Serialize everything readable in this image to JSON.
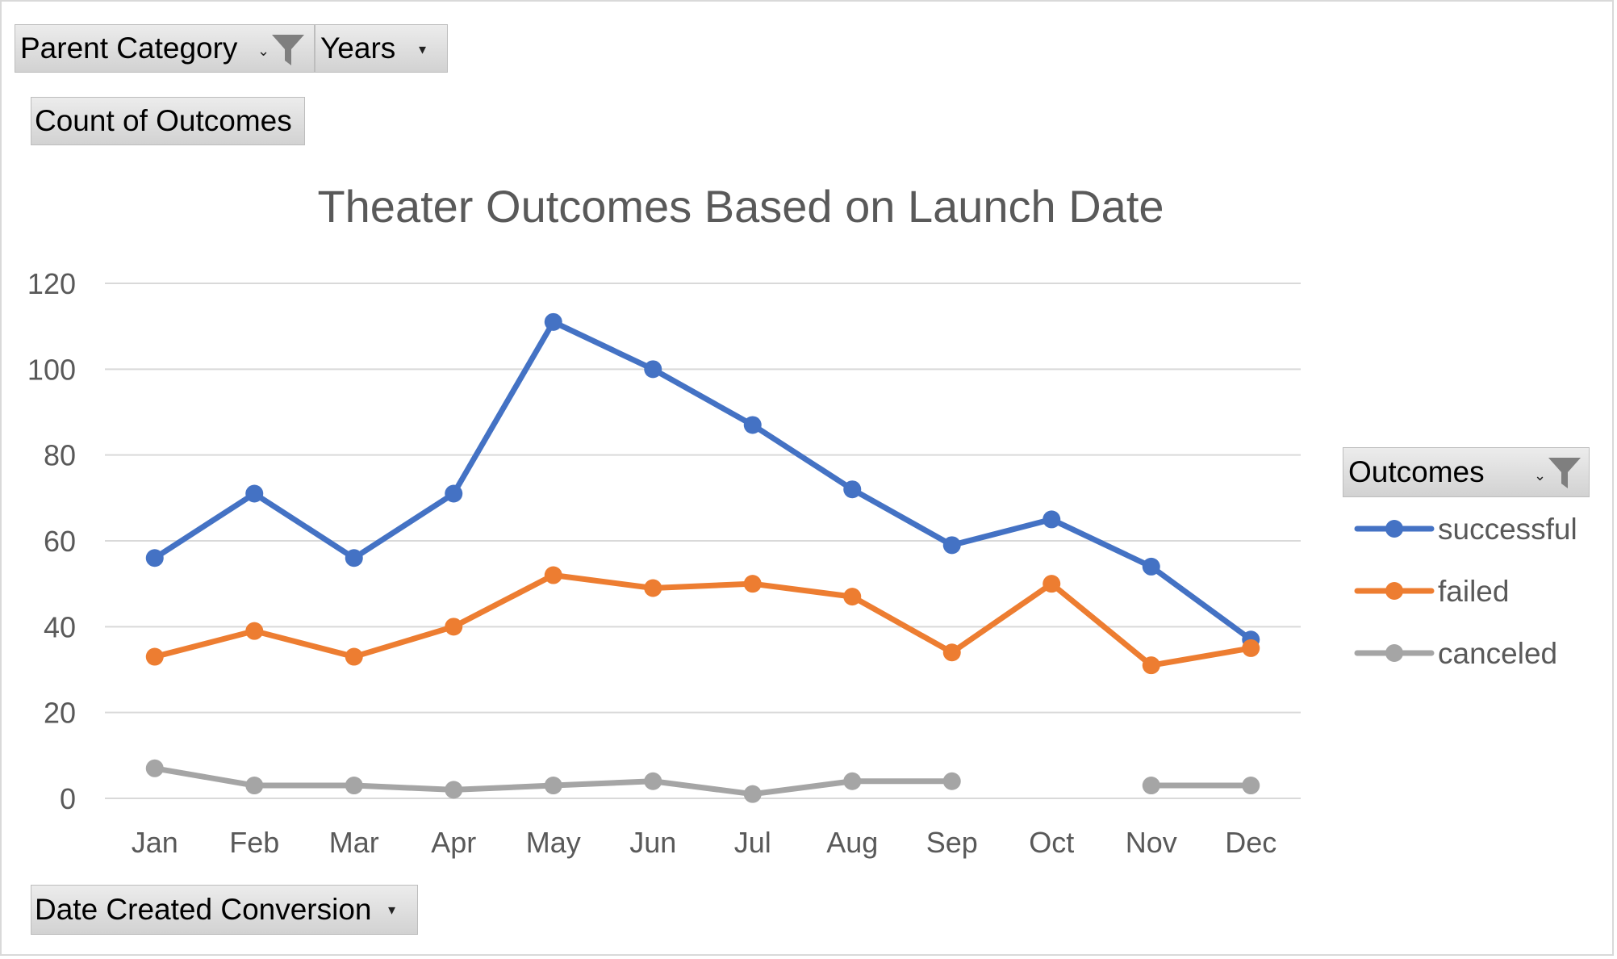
{
  "filters": {
    "parent_category": {
      "label": "Parent Category",
      "icon": "funnel-icon"
    },
    "years": {
      "label": "Years",
      "icon": "dropdown-arrow-icon"
    },
    "values_field": {
      "label": "Count of Outcomes"
    },
    "axis_field": {
      "label": "Date Created Conversion",
      "icon": "dropdown-arrow-icon"
    },
    "legend_field": {
      "label": "Outcomes",
      "icon": "funnel-icon"
    }
  },
  "colors": {
    "successful": "#4472c4",
    "failed": "#ed7d31",
    "canceled": "#a5a5a5",
    "grid": "#d9d9d9",
    "text": "#595959"
  },
  "chart_data": {
    "type": "line",
    "title": "Theater Outcomes Based on Launch Date",
    "categories": [
      "Jan",
      "Feb",
      "Mar",
      "Apr",
      "May",
      "Jun",
      "Jul",
      "Aug",
      "Sep",
      "Oct",
      "Nov",
      "Dec"
    ],
    "yticks": [
      "0",
      "20",
      "40",
      "60",
      "80",
      "100",
      "120"
    ],
    "ylim": [
      0,
      120
    ],
    "grid": true,
    "legend_position": "right",
    "series": [
      {
        "name": "successful",
        "values": [
          56,
          71,
          56,
          71,
          111,
          100,
          87,
          72,
          59,
          65,
          54,
          37
        ]
      },
      {
        "name": "failed",
        "values": [
          33,
          39,
          33,
          40,
          52,
          49,
          50,
          47,
          34,
          50,
          31,
          35
        ]
      },
      {
        "name": "canceled",
        "values": [
          7,
          3,
          3,
          2,
          3,
          4,
          1,
          4,
          4,
          null,
          3,
          3
        ]
      }
    ]
  }
}
